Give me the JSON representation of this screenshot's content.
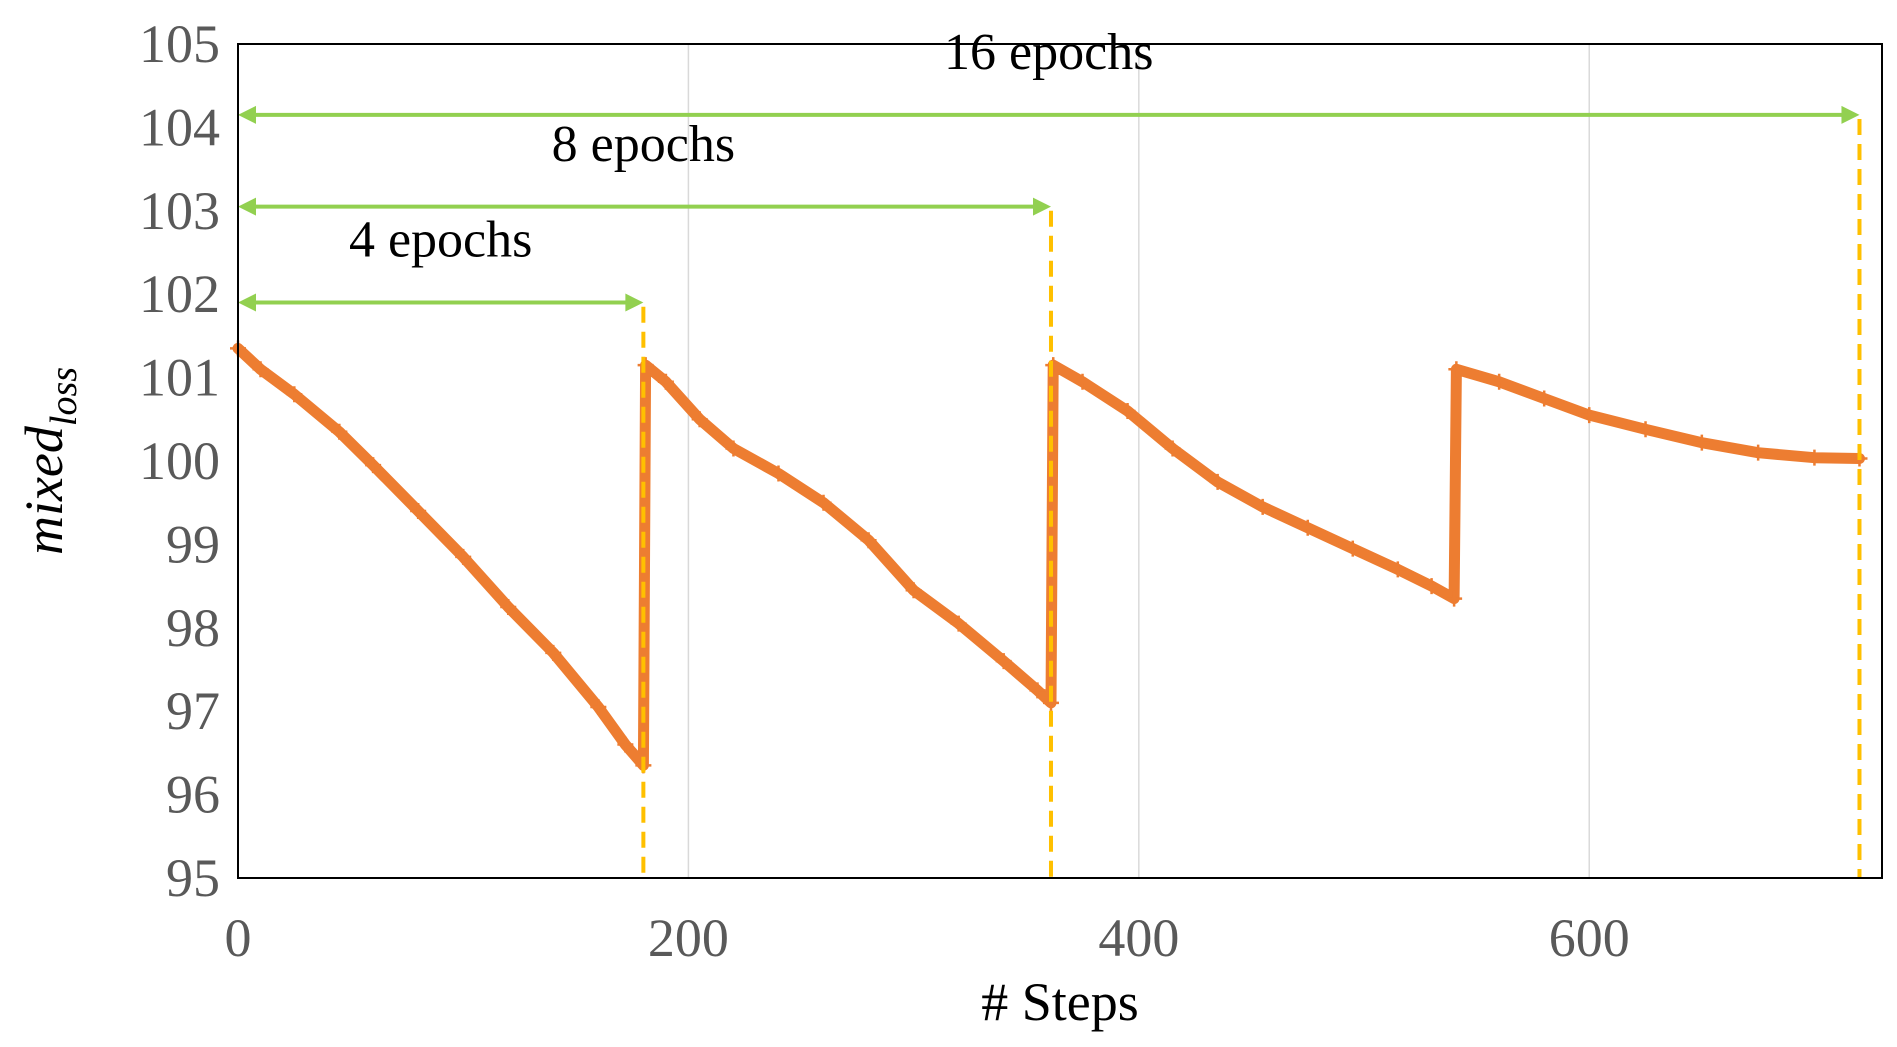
{
  "chart_data": {
    "type": "line",
    "xlabel": "# Steps",
    "ylabel": {
      "main": "mixed",
      "sub": "loss"
    },
    "xlim": [
      0,
      730
    ],
    "ylim": [
      95,
      105
    ],
    "xticks": [
      0,
      200,
      400,
      600
    ],
    "yticks": [
      95,
      96,
      97,
      98,
      99,
      100,
      101,
      102,
      103,
      104,
      105
    ],
    "grid": "vertical",
    "series": [
      {
        "color": "#ED7D31",
        "marker": "plus",
        "points": [
          [
            0,
            101.35
          ],
          [
            10,
            101.1
          ],
          [
            25,
            100.8
          ],
          [
            45,
            100.35
          ],
          [
            60,
            99.95
          ],
          [
            80,
            99.4
          ],
          [
            100,
            98.85
          ],
          [
            120,
            98.25
          ],
          [
            140,
            97.7
          ],
          [
            160,
            97.05
          ],
          [
            172,
            96.6
          ],
          [
            180,
            96.35
          ],
          [
            181,
            101.15
          ],
          [
            190,
            100.95
          ],
          [
            205,
            100.5
          ],
          [
            220,
            100.15
          ],
          [
            240,
            99.85
          ],
          [
            260,
            99.5
          ],
          [
            280,
            99.05
          ],
          [
            300,
            98.45
          ],
          [
            320,
            98.05
          ],
          [
            340,
            97.6
          ],
          [
            355,
            97.25
          ],
          [
            361,
            97.1
          ],
          [
            362,
            101.15
          ],
          [
            375,
            100.95
          ],
          [
            395,
            100.6
          ],
          [
            415,
            100.15
          ],
          [
            435,
            99.75
          ],
          [
            455,
            99.45
          ],
          [
            475,
            99.2
          ],
          [
            495,
            98.95
          ],
          [
            515,
            98.7
          ],
          [
            530,
            98.5
          ],
          [
            540,
            98.35
          ],
          [
            541,
            101.1
          ],
          [
            560,
            100.95
          ],
          [
            580,
            100.75
          ],
          [
            600,
            100.55
          ],
          [
            625,
            100.38
          ],
          [
            650,
            100.22
          ],
          [
            675,
            100.1
          ],
          [
            700,
            100.04
          ],
          [
            720,
            100.03
          ]
        ]
      }
    ],
    "markers": {
      "color": "#FFC000",
      "x": [
        180,
        361,
        720
      ],
      "y": [
        101.85,
        103.0,
        104.1
      ]
    },
    "spans": {
      "color": "#92D050",
      "items": [
        {
          "label": "4 epochs",
          "from": 0,
          "to": 180,
          "y": 101.9,
          "label_x": 90,
          "label_y": 102.45
        },
        {
          "label": "8 epochs",
          "from": 0,
          "to": 361,
          "y": 103.05,
          "label_x": 180,
          "label_y": 103.6
        },
        {
          "label": "16 epochs",
          "from": 0,
          "to": 720,
          "y": 104.15,
          "label_x": 360,
          "label_y": 104.7
        }
      ]
    }
  }
}
